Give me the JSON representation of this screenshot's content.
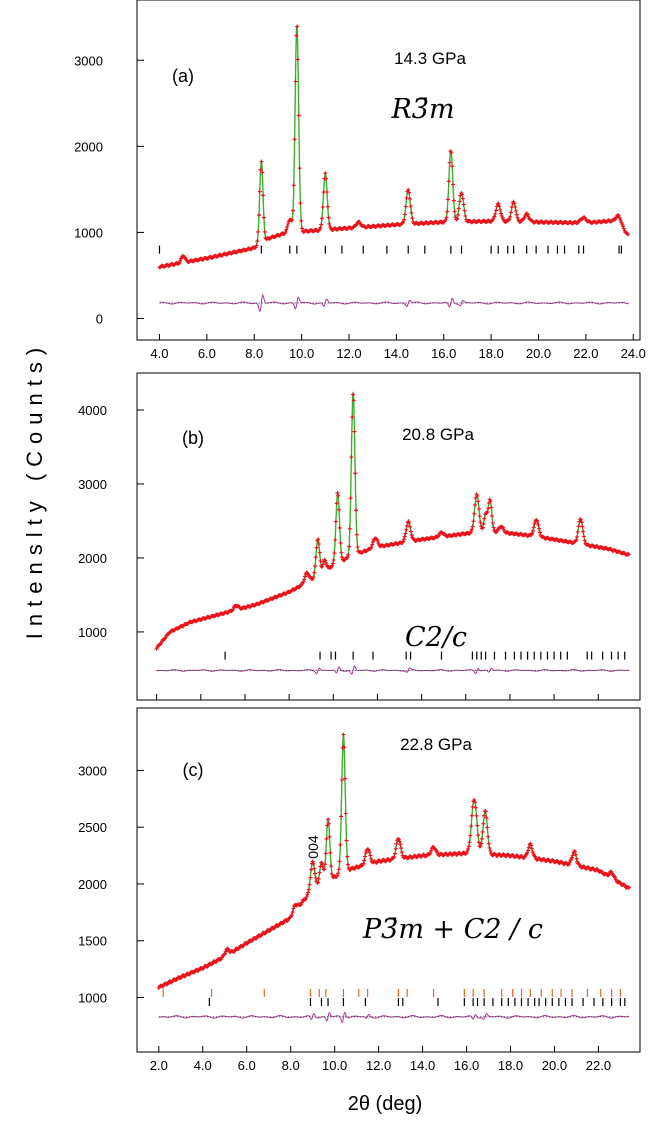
{
  "figure": {
    "ylabel": "Intenslty (Counts)",
    "xlabel": "2θ (deg)"
  },
  "colors": {
    "observed": "#e8141b",
    "calculated": "#3fae2a",
    "difference": "#b0389a",
    "tick_primary": "#000000",
    "tick_secondary": "#e06a2a"
  },
  "chart_data": [
    {
      "type": "line",
      "panel": "(a)",
      "pressure": "14.3 GPa",
      "space_group": "R3̄m",
      "xlim": [
        3.6,
        24.2
      ],
      "ylim": [
        -250,
        3700
      ],
      "xticks": [
        4.0,
        6.0,
        8.0,
        10.0,
        12.0,
        14.0,
        16.0,
        18.0,
        20.0,
        22.0,
        24.0
      ],
      "xtick_labels": [
        "4.0",
        "6.0",
        "8.0",
        "10.0",
        "12.0",
        "14.0",
        "16.0",
        "18.0",
        "20.0",
        "22.0",
        "24.0"
      ],
      "yticks": [
        0,
        1000,
        2000,
        3000
      ],
      "ytick_labels": [
        "0",
        "1000",
        "2000",
        "3000"
      ],
      "x_range": [
        4.0,
        23.8
      ],
      "background": [
        [
          4.0,
          600
        ],
        [
          6.0,
          700
        ],
        [
          8.0,
          820
        ],
        [
          8.6,
          930
        ],
        [
          9.4,
          1000
        ],
        [
          10.5,
          1020
        ],
        [
          12.0,
          1050
        ],
        [
          14.0,
          1090
        ],
        [
          16.0,
          1120
        ],
        [
          18.0,
          1130
        ],
        [
          20.0,
          1120
        ],
        [
          22.0,
          1110
        ],
        [
          23.3,
          1140
        ],
        [
          23.8,
          960
        ]
      ],
      "peaks": [
        [
          5.0,
          80,
          0.08
        ],
        [
          8.3,
          950,
          0.07
        ],
        [
          9.5,
          150,
          0.08
        ],
        [
          9.8,
          2400,
          0.075
        ],
        [
          11.0,
          650,
          0.08
        ],
        [
          12.4,
          60,
          0.1
        ],
        [
          14.5,
          400,
          0.09
        ],
        [
          16.3,
          830,
          0.08
        ],
        [
          16.75,
          340,
          0.09
        ],
        [
          18.3,
          200,
          0.1
        ],
        [
          18.95,
          230,
          0.09
        ],
        [
          19.5,
          90,
          0.1
        ],
        [
          21.9,
          60,
          0.12
        ],
        [
          23.4,
          80,
          0.1
        ]
      ],
      "reflection_rows": [
        {
          "level": 800,
          "positions": [
            4.0,
            8.3,
            9.5,
            9.8,
            11.0,
            11.7,
            12.6,
            13.6,
            14.5,
            15.2,
            16.3,
            16.75,
            18.0,
            18.3,
            18.7,
            18.95,
            19.5,
            19.9,
            20.4,
            20.8,
            21.1,
            21.7,
            21.9,
            23.4,
            23.5
          ]
        }
      ],
      "difference_level": 180,
      "difference_bumps": [
        [
          8.3,
          160
        ],
        [
          9.8,
          110
        ],
        [
          11.0,
          70
        ],
        [
          14.5,
          60
        ],
        [
          16.3,
          90
        ],
        [
          16.75,
          45
        ]
      ]
    },
    {
      "type": "line",
      "panel": "(b)",
      "pressure": "20.8 GPa",
      "space_group": "C2/c",
      "xlim": [
        1.7,
        23.8
      ],
      "ylim": [
        80,
        4500
      ],
      "xticks": [
        2,
        4,
        6,
        8,
        10,
        12,
        14,
        16,
        18,
        20,
        22
      ],
      "xtick_labels": [],
      "yticks": [
        1000,
        2000,
        3000,
        4000
      ],
      "ytick_labels": [
        "1000",
        "2000",
        "3000",
        "4000"
      ],
      "x_range": [
        2.0,
        23.4
      ],
      "background": [
        [
          2.0,
          780
        ],
        [
          2.6,
          1000
        ],
        [
          3.5,
          1130
        ],
        [
          5.0,
          1250
        ],
        [
          6.5,
          1370
        ],
        [
          8.0,
          1540
        ],
        [
          9.0,
          1700
        ],
        [
          10.0,
          1900
        ],
        [
          11.0,
          2050
        ],
        [
          12.0,
          2150
        ],
        [
          14.0,
          2250
        ],
        [
          16.0,
          2330
        ],
        [
          17.5,
          2350
        ],
        [
          19.0,
          2300
        ],
        [
          21.0,
          2200
        ],
        [
          22.5,
          2120
        ],
        [
          23.4,
          2040
        ]
      ],
      "peaks": [
        [
          5.6,
          60,
          0.1
        ],
        [
          8.8,
          130,
          0.1
        ],
        [
          9.3,
          500,
          0.08
        ],
        [
          9.6,
          150,
          0.08
        ],
        [
          10.2,
          950,
          0.08
        ],
        [
          10.9,
          2200,
          0.08
        ],
        [
          11.9,
          130,
          0.1
        ],
        [
          13.4,
          270,
          0.1
        ],
        [
          14.9,
          60,
          0.1
        ],
        [
          16.5,
          520,
          0.1
        ],
        [
          16.9,
          240,
          0.08
        ],
        [
          17.1,
          430,
          0.08
        ],
        [
          17.6,
          80,
          0.1
        ],
        [
          19.2,
          230,
          0.1
        ],
        [
          21.2,
          340,
          0.1
        ]
      ],
      "reflection_rows": [
        {
          "level": 680,
          "positions": [
            5.1,
            9.4,
            9.9,
            10.1,
            10.9,
            11.8,
            13.3,
            13.5,
            14.9,
            16.3,
            16.5,
            16.7,
            16.9,
            17.3,
            17.8,
            18.2,
            18.5,
            18.8,
            19.1,
            19.4,
            19.7,
            20.0,
            20.3,
            20.6,
            21.5,
            21.7,
            22.2,
            22.6,
            22.9,
            23.2
          ]
        }
      ],
      "difference_level": 480,
      "difference_bumps": [
        [
          9.3,
          60
        ],
        [
          10.2,
          70
        ],
        [
          10.9,
          90
        ],
        [
          13.4,
          40
        ],
        [
          16.5,
          60
        ],
        [
          17.1,
          45
        ]
      ]
    },
    {
      "type": "line",
      "panel": "(c)",
      "pressure": "22.8 GPa",
      "space_group": "P3̄m + C2 / c",
      "annotation": "004",
      "xlim": [
        1.6,
        23.8
      ],
      "ylim": [
        520,
        3550
      ],
      "xticks": [
        2.0,
        4.0,
        6.0,
        8.0,
        10.0,
        12.0,
        14.0,
        16.0,
        18.0,
        20.0,
        22.0
      ],
      "xtick_labels": [
        "2.0",
        "4.0",
        "6.0",
        "8.0",
        "10.0",
        "12.0",
        "14.0",
        "16.0",
        "18.0",
        "20.0",
        "22.0"
      ],
      "yticks": [
        1000,
        1500,
        2000,
        2500,
        3000
      ],
      "ytick_labels": [
        "1000",
        "1500",
        "2000",
        "2500",
        "3000"
      ],
      "x_range": [
        2.0,
        23.4
      ],
      "background": [
        [
          2.0,
          1090
        ],
        [
          3.0,
          1180
        ],
        [
          4.0,
          1260
        ],
        [
          5.0,
          1360
        ],
        [
          6.0,
          1480
        ],
        [
          7.0,
          1590
        ],
        [
          8.0,
          1700
        ],
        [
          8.6,
          1860
        ],
        [
          9.5,
          2000
        ],
        [
          10.5,
          2120
        ],
        [
          12.0,
          2200
        ],
        [
          14.0,
          2250
        ],
        [
          16.0,
          2270
        ],
        [
          18.0,
          2250
        ],
        [
          20.0,
          2200
        ],
        [
          22.0,
          2120
        ],
        [
          23.4,
          1960
        ]
      ],
      "peaks": [
        [
          5.1,
          50,
          0.1
        ],
        [
          8.2,
          60,
          0.1
        ],
        [
          9.0,
          270,
          0.1
        ],
        [
          9.4,
          200,
          0.09
        ],
        [
          9.7,
          550,
          0.08
        ],
        [
          10.4,
          1200,
          0.08
        ],
        [
          11.5,
          140,
          0.1
        ],
        [
          12.9,
          180,
          0.1
        ],
        [
          14.5,
          70,
          0.1
        ],
        [
          16.35,
          480,
          0.12
        ],
        [
          16.85,
          380,
          0.1
        ],
        [
          18.9,
          120,
          0.1
        ],
        [
          20.9,
          120,
          0.1
        ],
        [
          22.6,
          50,
          0.1
        ]
      ],
      "reflection_rows": [
        {
          "level": 1040,
          "positions": [
            2.2,
            4.4,
            6.8,
            8.9,
            9.3,
            9.6,
            10.4,
            11.1,
            11.5,
            12.9,
            13.3,
            14.5,
            15.9,
            16.3,
            16.8,
            17.6,
            18.1,
            18.5,
            18.9,
            19.4,
            19.9,
            20.3,
            20.8,
            21.5,
            22.1,
            22.6,
            23.0
          ],
          "color": "secondary"
        },
        {
          "level": 960,
          "positions": [
            4.3,
            8.9,
            9.4,
            9.7,
            10.4,
            11.4,
            12.9,
            13.1,
            14.7,
            15.9,
            16.3,
            16.5,
            16.8,
            17.2,
            17.6,
            17.9,
            18.2,
            18.5,
            18.8,
            19.1,
            19.3,
            19.6,
            19.9,
            20.2,
            20.5,
            20.8,
            21.3,
            21.8,
            22.2,
            22.6,
            23.0,
            23.2
          ],
          "color": "primary"
        }
      ],
      "difference_level": 830,
      "difference_bumps": [
        [
          9.0,
          50
        ],
        [
          9.7,
          60
        ],
        [
          10.4,
          80
        ],
        [
          11.5,
          30
        ],
        [
          16.35,
          40
        ],
        [
          16.85,
          35
        ]
      ]
    }
  ]
}
